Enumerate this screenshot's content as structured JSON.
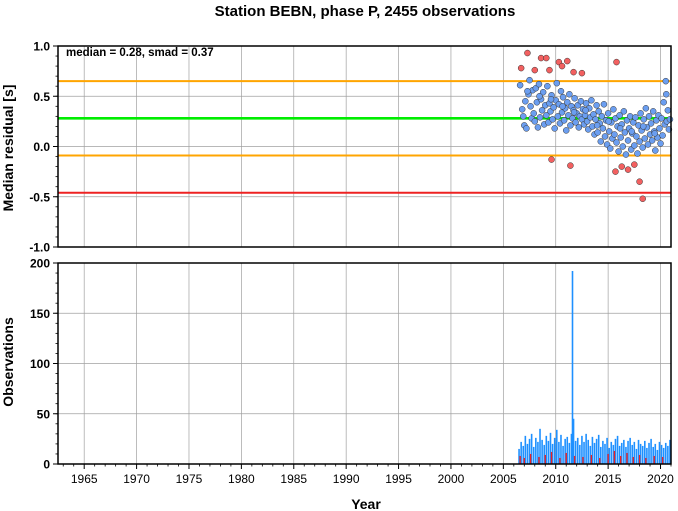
{
  "chart_data": [
    {
      "type": "scatter",
      "title": "Station BEBN, phase P, 2455 observations",
      "ylabel": "Median residual [s]",
      "xlim": [
        1962.5,
        2021.0
      ],
      "ylim": [
        -1.0,
        1.0
      ],
      "yticks": [
        "1.0",
        "0.5",
        "0.0",
        "-0.5",
        "-1.0"
      ],
      "ytick_values": [
        1.0,
        0.5,
        0.0,
        -0.5,
        -1.0
      ],
      "grid": true,
      "annotation": "median = 0.28, smad = 0.37",
      "reference_lines": [
        {
          "y": 0.65,
          "color": "#ffa500"
        },
        {
          "y": 0.28,
          "color": "#00ee00"
        },
        {
          "y": -0.09,
          "color": "#ffa500"
        },
        {
          "y": -0.46,
          "color": "#ee2222"
        }
      ],
      "colors": {
        "inlier": "#6b9ef0",
        "outlier": "#f26060",
        "edge": "#333333"
      },
      "points_in": [
        [
          2006.6,
          0.61
        ],
        [
          2006.8,
          0.37
        ],
        [
          2006.9,
          0.3
        ],
        [
          2007.0,
          0.21
        ],
        [
          2007.1,
          0.45
        ],
        [
          2007.2,
          0.18
        ],
        [
          2007.4,
          0.52
        ],
        [
          2007.5,
          0.66
        ],
        [
          2007.6,
          0.4
        ],
        [
          2007.7,
          0.28
        ],
        [
          2007.8,
          0.56
        ],
        [
          2007.9,
          0.33
        ],
        [
          2008.0,
          0.25
        ],
        [
          2008.1,
          0.58
        ],
        [
          2008.2,
          0.44
        ],
        [
          2008.3,
          0.19
        ],
        [
          2008.4,
          0.62
        ],
        [
          2008.5,
          0.29
        ],
        [
          2008.6,
          0.47
        ],
        [
          2008.7,
          0.36
        ],
        [
          2008.8,
          0.54
        ],
        [
          2008.9,
          0.22
        ],
        [
          2009.0,
          0.41
        ],
        [
          2009.1,
          0.31
        ],
        [
          2009.2,
          0.6
        ],
        [
          2009.3,
          0.24
        ],
        [
          2009.4,
          0.43
        ],
        [
          2009.5,
          0.35
        ],
        [
          2009.6,
          0.51
        ],
        [
          2009.7,
          0.27
        ],
        [
          2009.8,
          0.39
        ],
        [
          2009.9,
          0.18
        ],
        [
          2010.0,
          0.46
        ],
        [
          2010.1,
          0.63
        ],
        [
          2010.2,
          0.3
        ],
        [
          2010.3,
          0.42
        ],
        [
          2010.4,
          0.23
        ],
        [
          2010.5,
          0.55
        ],
        [
          2010.6,
          0.34
        ],
        [
          2010.7,
          0.49
        ],
        [
          2010.8,
          0.26
        ],
        [
          2010.9,
          0.38
        ],
        [
          2011.0,
          0.16
        ],
        [
          2011.1,
          0.44
        ],
        [
          2011.2,
          0.31
        ],
        [
          2011.3,
          0.52
        ],
        [
          2011.4,
          0.21
        ],
        [
          2011.5,
          0.4
        ],
        [
          2011.6,
          0.28
        ],
        [
          2011.7,
          0.36
        ],
        [
          2011.8,
          0.48
        ],
        [
          2011.9,
          0.24
        ],
        [
          2012.0,
          0.33
        ],
        [
          2012.1,
          0.41
        ],
        [
          2012.2,
          0.19
        ],
        [
          2012.3,
          0.3
        ],
        [
          2012.4,
          0.45
        ],
        [
          2012.5,
          0.27
        ],
        [
          2012.6,
          0.37
        ],
        [
          2012.7,
          0.22
        ],
        [
          2012.8,
          0.31
        ],
        [
          2012.9,
          0.43
        ],
        [
          2013.0,
          0.25
        ],
        [
          2013.1,
          0.17
        ],
        [
          2013.2,
          0.38
        ],
        [
          2013.3,
          0.29
        ],
        [
          2013.4,
          0.46
        ],
        [
          2013.5,
          0.2
        ],
        [
          2013.6,
          0.32
        ],
        [
          2013.7,
          0.12
        ],
        [
          2013.8,
          0.27
        ],
        [
          2013.9,
          0.41
        ],
        [
          2014.0,
          0.14
        ],
        [
          2014.1,
          0.35
        ],
        [
          2014.2,
          0.23
        ],
        [
          2014.3,
          0.05
        ],
        [
          2014.4,
          0.3
        ],
        [
          2014.5,
          0.18
        ],
        [
          2014.6,
          0.42
        ],
        [
          2014.7,
          0.1
        ],
        [
          2014.8,
          0.26
        ],
        [
          2014.9,
          0.02
        ],
        [
          2015.0,
          0.33
        ],
        [
          2015.1,
          0.15
        ],
        [
          2015.2,
          -0.02
        ],
        [
          2015.3,
          0.24
        ],
        [
          2015.4,
          0.08
        ],
        [
          2015.5,
          0.37
        ],
        [
          2015.6,
          0.12
        ],
        [
          2015.7,
          0.28
        ],
        [
          2015.8,
          0.04
        ],
        [
          2015.9,
          0.2
        ],
        [
          2016.0,
          -0.05
        ],
        [
          2016.1,
          0.31
        ],
        [
          2016.2,
          0.09
        ],
        [
          2016.3,
          0.22
        ],
        [
          2016.4,
          0.0
        ],
        [
          2016.5,
          0.35
        ],
        [
          2016.6,
          0.14
        ],
        [
          2016.7,
          -0.08
        ],
        [
          2016.8,
          0.26
        ],
        [
          2016.9,
          0.06
        ],
        [
          2017.0,
          0.18
        ],
        [
          2017.1,
          0.3
        ],
        [
          2017.2,
          -0.03
        ],
        [
          2017.3,
          0.13
        ],
        [
          2017.4,
          0.24
        ],
        [
          2017.5,
          0.01
        ],
        [
          2017.6,
          0.29
        ],
        [
          2017.7,
          0.1
        ],
        [
          2017.8,
          -0.07
        ],
        [
          2017.9,
          0.21
        ],
        [
          2018.0,
          0.05
        ],
        [
          2018.1,
          0.33
        ],
        [
          2018.2,
          0.16
        ],
        [
          2018.3,
          -0.01
        ],
        [
          2018.4,
          0.27
        ],
        [
          2018.5,
          0.08
        ],
        [
          2018.6,
          0.38
        ],
        [
          2018.7,
          0.19
        ],
        [
          2018.8,
          0.02
        ],
        [
          2018.9,
          0.3
        ],
        [
          2019.0,
          0.12
        ],
        [
          2019.1,
          0.23
        ],
        [
          2019.2,
          0.06
        ],
        [
          2019.3,
          0.35
        ],
        [
          2019.4,
          0.15
        ],
        [
          2019.5,
          -0.04
        ],
        [
          2019.6,
          0.26
        ],
        [
          2019.7,
          0.09
        ],
        [
          2019.8,
          0.31
        ],
        [
          2019.9,
          0.18
        ],
        [
          2020.0,
          0.03
        ],
        [
          2020.1,
          0.28
        ],
        [
          2020.2,
          0.11
        ],
        [
          2020.3,
          0.44
        ],
        [
          2020.4,
          0.22
        ],
        [
          2020.5,
          0.65
        ],
        [
          2020.6,
          0.25
        ],
        [
          2020.7,
          0.36
        ],
        [
          2020.8,
          0.17
        ],
        [
          2020.9,
          0.27
        ],
        [
          2007.3,
          0.55
        ],
        [
          2008.45,
          0.5
        ],
        [
          2009.55,
          0.47
        ],
        [
          2010.65,
          0.4
        ],
        [
          2011.75,
          0.34
        ],
        [
          2012.85,
          0.36
        ],
        [
          2013.95,
          0.21
        ],
        [
          2015.05,
          0.25
        ],
        [
          2016.15,
          0.18
        ],
        [
          2017.25,
          0.15
        ],
        [
          2018.35,
          0.2
        ],
        [
          2019.45,
          0.13
        ],
        [
          2020.55,
          0.52
        ]
      ],
      "points_out": [
        [
          2006.7,
          0.78
        ],
        [
          2007.3,
          0.93
        ],
        [
          2008.0,
          0.76
        ],
        [
          2008.6,
          0.88
        ],
        [
          2009.1,
          0.88
        ],
        [
          2009.4,
          0.76
        ],
        [
          2010.3,
          0.84
        ],
        [
          2010.6,
          0.8
        ],
        [
          2011.1,
          0.85
        ],
        [
          2011.7,
          0.74
        ],
        [
          2012.5,
          0.73
        ],
        [
          2015.8,
          0.84
        ],
        [
          2009.6,
          -0.13
        ],
        [
          2011.4,
          -0.19
        ],
        [
          2015.7,
          -0.25
        ],
        [
          2016.3,
          -0.2
        ],
        [
          2016.9,
          -0.23
        ],
        [
          2017.5,
          -0.18
        ],
        [
          2018.0,
          -0.35
        ],
        [
          2018.3,
          -0.52
        ]
      ]
    },
    {
      "type": "bar",
      "xlabel": "Year",
      "ylabel": "Observations",
      "xlim": [
        1962.5,
        2021.0
      ],
      "ylim": [
        0,
        200
      ],
      "xticks": [
        "1965",
        "1970",
        "1975",
        "1980",
        "1985",
        "1990",
        "1995",
        "2000",
        "2005",
        "2010",
        "2015",
        "2020"
      ],
      "xtick_values": [
        1965,
        1970,
        1975,
        1980,
        1985,
        1990,
        1995,
        2000,
        2005,
        2010,
        2015,
        2020
      ],
      "yticks": [
        "200",
        "150",
        "100",
        "50",
        "0"
      ],
      "ytick_values": [
        200,
        150,
        100,
        50,
        0
      ],
      "grid": true,
      "colors": {
        "total": "#1e90ff",
        "outlier": "#ee2222"
      },
      "series": [
        {
          "x": [
            2006.5,
            2006.7,
            2006.9,
            2007.1,
            2007.3,
            2007.5,
            2007.7,
            2007.9,
            2008.1,
            2008.3,
            2008.5,
            2008.7,
            2008.9,
            2009.1,
            2009.3,
            2009.5,
            2009.7,
            2009.9,
            2010.1,
            2010.3,
            2010.5,
            2010.7,
            2010.9,
            2011.1,
            2011.3,
            2011.5,
            2011.6,
            2011.7,
            2011.9,
            2012.1,
            2012.3,
            2012.5,
            2012.7,
            2012.9,
            2013.1,
            2013.3,
            2013.5,
            2013.7,
            2013.9,
            2014.1,
            2014.3,
            2014.5,
            2014.7,
            2014.9,
            2015.1,
            2015.3,
            2015.5,
            2015.7,
            2015.9,
            2016.1,
            2016.3,
            2016.5,
            2016.7,
            2016.9,
            2017.1,
            2017.3,
            2017.5,
            2017.7,
            2017.9,
            2018.1,
            2018.3,
            2018.5,
            2018.7,
            2018.9,
            2019.1,
            2019.3,
            2019.5,
            2019.7,
            2019.9,
            2020.1,
            2020.3,
            2020.5,
            2020.7,
            2020.9
          ],
          "values": [
            15,
            22,
            18,
            28,
            20,
            25,
            30,
            17,
            26,
            22,
            35,
            24,
            19,
            28,
            23,
            31,
            20,
            26,
            34,
            22,
            29,
            18,
            25,
            27,
            21,
            30,
            192,
            45,
            23,
            26,
            19,
            28,
            22,
            30,
            24,
            18,
            27,
            21,
            25,
            29,
            17,
            23,
            20,
            26,
            16,
            22,
            19,
            25,
            28,
            18,
            21,
            24,
            17,
            23,
            26,
            19,
            22,
            15,
            24,
            20,
            18,
            23,
            16,
            21,
            25,
            17,
            20,
            14,
            22,
            19,
            16,
            21,
            18,
            24
          ]
        },
        {
          "x": [
            2006.6,
            2007.0,
            2007.6,
            2008.4,
            2009.0,
            2009.6,
            2010.4,
            2011.0,
            2011.8,
            2012.6,
            2013.4,
            2014.2,
            2015.0,
            2015.6,
            2016.2,
            2016.8,
            2017.4,
            2018.0,
            2018.6,
            2019.4,
            2020.2
          ],
          "values": [
            8,
            6,
            10,
            7,
            9,
            12,
            6,
            11,
            8,
            7,
            9,
            6,
            10,
            13,
            8,
            11,
            7,
            9,
            6,
            8,
            7
          ]
        }
      ]
    }
  ]
}
